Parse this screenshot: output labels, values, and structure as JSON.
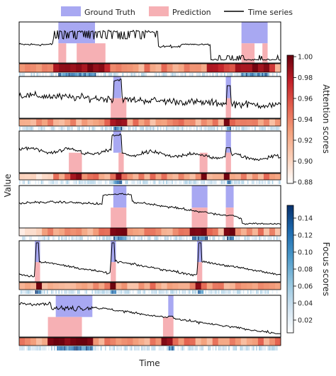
{
  "figure": {
    "legend": {
      "ground_truth": "Ground Truth",
      "prediction": "Prediction",
      "time_series": "Time series"
    },
    "xlabel": "Time",
    "ylabel": "Value",
    "colors": {
      "ground_truth": "#a8a8f2",
      "prediction": "#f6b0b4",
      "line": "#000000"
    }
  },
  "attention_colorbar": {
    "label": "Attention scores",
    "ticks": [
      "1.00",
      "0.98",
      "0.96",
      "0.94",
      "0.92",
      "0.90",
      "0.88"
    ],
    "range": [
      0.88,
      1.0
    ],
    "colors": [
      "#ffffff",
      "#fbd0b9",
      "#f4a27e",
      "#e3614f",
      "#c11f28",
      "#67000d"
    ]
  },
  "focus_colorbar": {
    "label": "Focus scores",
    "ticks": [
      "0.14",
      "0.12",
      "0.10",
      "0.08",
      "0.06",
      "0.04",
      "0.02"
    ],
    "range": [
      0.0,
      0.15
    ],
    "colors": [
      "#ffffff",
      "#cfe2f0",
      "#92c4de",
      "#4a98c9",
      "#1c6aaf",
      "#08306b"
    ]
  },
  "chart_data": [
    {
      "type": "line",
      "panel": 1,
      "gt": [
        [
          0.15,
          0.29
        ],
        [
          0.85,
          0.95
        ]
      ],
      "pred": [
        [
          0.15,
          0.18
        ],
        [
          0.22,
          0.33
        ],
        [
          0.85,
          0.9
        ],
        [
          0.93,
          0.95
        ],
        [
          1.4,
          1.45
        ]
      ],
      "cells": 46
    },
    {
      "type": "line",
      "panel": 2,
      "gt": [
        [
          0.36,
          0.39
        ],
        [
          0.79,
          0.81
        ]
      ],
      "pred": [
        [
          0.35,
          0.41
        ],
        [
          0.79,
          0.81
        ]
      ],
      "cells": 46
    },
    {
      "type": "line",
      "panel": 3,
      "gt": [
        [
          0.36,
          0.39
        ],
        [
          0.79,
          0.81
        ]
      ],
      "pred": [
        [
          0.19,
          0.24
        ],
        [
          0.38,
          0.4
        ],
        [
          0.69,
          0.72
        ],
        [
          0.79,
          0.81
        ]
      ],
      "cells": 46
    },
    {
      "type": "line",
      "panel": 4,
      "gt": [
        [
          0.36,
          0.41
        ],
        [
          0.66,
          0.72
        ],
        [
          0.79,
          0.82
        ]
      ],
      "pred": [
        [
          0.35,
          0.41
        ],
        [
          0.66,
          0.72
        ],
        [
          0.79,
          0.82
        ]
      ],
      "cells": 46
    },
    {
      "type": "line",
      "panel": 5,
      "gt": [
        [
          0.06,
          0.08
        ],
        [
          0.35,
          0.37
        ],
        [
          0.68,
          0.7
        ]
      ],
      "pred": [
        [
          0.06,
          0.08
        ],
        [
          0.35,
          0.37
        ],
        [
          0.68,
          0.7
        ]
      ],
      "cells": 46
    },
    {
      "type": "line",
      "panel": 6,
      "gt": [
        [
          0.14,
          0.28
        ],
        [
          0.57,
          0.59
        ]
      ],
      "pred": [
        [
          0.11,
          0.24
        ],
        [
          0.55,
          0.59
        ]
      ],
      "cells": 46
    }
  ]
}
